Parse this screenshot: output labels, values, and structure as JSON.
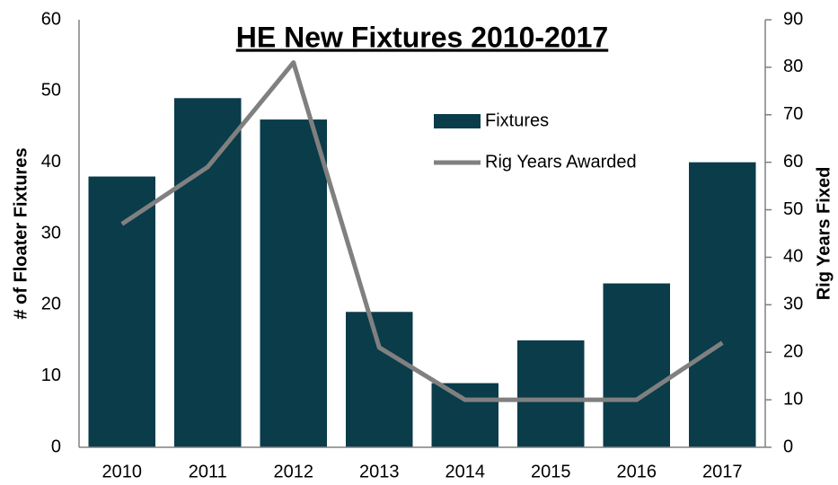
{
  "chart_data": {
    "type": "bar",
    "title": "HE New Fixtures 2010-2017",
    "ylabel": "# of Floater Fixtures",
    "y2label": "Rig Years Fixed",
    "categories": [
      "2010",
      "2011",
      "2012",
      "2013",
      "2014",
      "2015",
      "2016",
      "2017"
    ],
    "series": [
      {
        "name": "Fixtures",
        "type": "bar",
        "color": "#0a3c4a",
        "values": [
          38,
          49,
          46,
          19,
          9,
          15,
          23,
          40
        ]
      },
      {
        "name": "Rig Years Awarded",
        "type": "line",
        "axis": "y2",
        "color": "#808080",
        "values": [
          47,
          59,
          81,
          21,
          10,
          10,
          10,
          22
        ]
      }
    ],
    "ylim": [
      0,
      60
    ],
    "yticks": [
      0,
      10,
      20,
      30,
      40,
      50,
      60
    ],
    "y2lim": [
      0,
      90
    ],
    "y2ticks": [
      0,
      10,
      20,
      30,
      40,
      50,
      60,
      70,
      80,
      90
    ],
    "legend": "upper center"
  }
}
